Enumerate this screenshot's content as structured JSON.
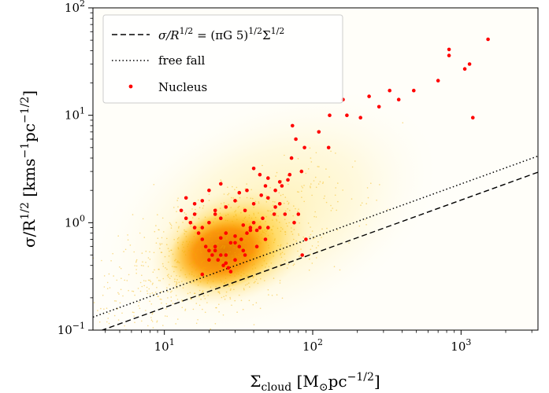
{
  "chart_data": {
    "type": "scatter",
    "title": "",
    "xscale": "log",
    "yscale": "log",
    "xlim": [
      3.3,
      3300
    ],
    "ylim": [
      0.1,
      100
    ],
    "xlabel": {
      "base": "Σ",
      "sub": "cloud",
      "unit": "[M",
      "unit_sub": "⊙",
      "unit_rest": "pc",
      "unit_sup": "−1/2",
      "close": "]"
    },
    "ylabel": {
      "base": "σ/R",
      "sup": "1/2",
      "unit": " [kms",
      "unit_sup1": "−1",
      "unit_mid": "pc",
      "unit_sup2": "−1/2",
      "close": "]"
    },
    "xticks": [
      {
        "value": 10,
        "base": "10",
        "exp": "1"
      },
      {
        "value": 100,
        "base": "10",
        "exp": "2"
      },
      {
        "value": 1000,
        "base": "10",
        "exp": "3"
      }
    ],
    "yticks": [
      {
        "value": 0.1,
        "base": "10",
        "exp": "−1"
      },
      {
        "value": 1,
        "base": "10",
        "exp": "0"
      },
      {
        "value": 10,
        "base": "10",
        "exp": "1"
      },
      {
        "value": 100,
        "base": "10",
        "exp": "2"
      }
    ],
    "legend": {
      "position": "upper-left",
      "entries": [
        {
          "label": "σ/R^{1/2} = (πG 5)^{1/2}Σ^{1/2}",
          "style": "dashed",
          "text_parts": [
            "σ/R",
            "1/2",
            " = (πG 5)",
            "1/2",
            "Σ",
            "1/2"
          ]
        },
        {
          "label": "free fall",
          "style": "dotted"
        },
        {
          "label": "Nucleus",
          "style": "marker"
        }
      ]
    },
    "lines": [
      {
        "name": "equilibrium",
        "style": "dashed",
        "points": [
          [
            3.3,
            0.093
          ],
          [
            3300,
            2.95
          ]
        ]
      },
      {
        "name": "free fall",
        "style": "dotted",
        "points": [
          [
            3.3,
            0.132
          ],
          [
            3300,
            4.17
          ]
        ]
      }
    ],
    "density": {
      "description_center": [
        25,
        0.55
      ],
      "colors": [
        "#fffbe8",
        "#fff2b0",
        "#ffd54f",
        "#ffb300",
        "#fb8c00",
        "#e67e00"
      ]
    },
    "series": [
      {
        "name": "Nucleus",
        "color": "#ff0000",
        "x": [
          1520,
          830,
          830,
          1060,
          1140,
          1200,
          700,
          480,
          380,
          330,
          280,
          240,
          210,
          170,
          160,
          130,
          110,
          128,
          88,
          84,
          77,
          73,
          72,
          70,
          60,
          56,
          50,
          48,
          44,
          40,
          36,
          32,
          30,
          26,
          24,
          22,
          20,
          18,
          16,
          14,
          13,
          14,
          15,
          16,
          17,
          18,
          19,
          20,
          21,
          22,
          23,
          24,
          25,
          26,
          27,
          28,
          30,
          32,
          33,
          34,
          35,
          36,
          38,
          40,
          42,
          44,
          46,
          48,
          50,
          55,
          60,
          65,
          75,
          85,
          18,
          20,
          22,
          24,
          26,
          28,
          30,
          34,
          38,
          42,
          16,
          18,
          20,
          22,
          24,
          26,
          30,
          35,
          40,
          45,
          50,
          56,
          62,
          68,
          80,
          90
        ],
        "y": [
          51,
          41,
          36,
          27,
          30,
          9.5,
          21,
          17,
          14,
          17,
          12,
          15,
          9.5,
          10,
          14,
          10,
          7,
          5,
          5,
          3,
          6,
          8,
          4,
          2.8,
          2.4,
          2.0,
          2.6,
          2.2,
          2.8,
          3.2,
          2.0,
          1.9,
          1.6,
          1.4,
          2.3,
          1.2,
          2.0,
          1.6,
          1.5,
          1.7,
          1.3,
          1.1,
          1.0,
          0.9,
          0.8,
          0.7,
          0.6,
          0.55,
          0.5,
          0.6,
          0.45,
          0.5,
          0.4,
          0.42,
          0.38,
          0.35,
          0.45,
          0.6,
          0.7,
          0.55,
          0.5,
          0.8,
          0.9,
          1.0,
          0.85,
          0.9,
          1.1,
          0.7,
          0.9,
          1.2,
          1.5,
          1.2,
          1.0,
          0.5,
          0.33,
          0.45,
          0.55,
          0.72,
          0.8,
          0.65,
          0.75,
          0.95,
          0.85,
          0.6,
          1.2,
          0.9,
          1.0,
          1.3,
          1.1,
          0.5,
          0.65,
          1.3,
          1.5,
          1.8,
          1.7,
          1.4,
          2.2,
          2.5,
          1.2,
          0.7
        ]
      }
    ]
  }
}
